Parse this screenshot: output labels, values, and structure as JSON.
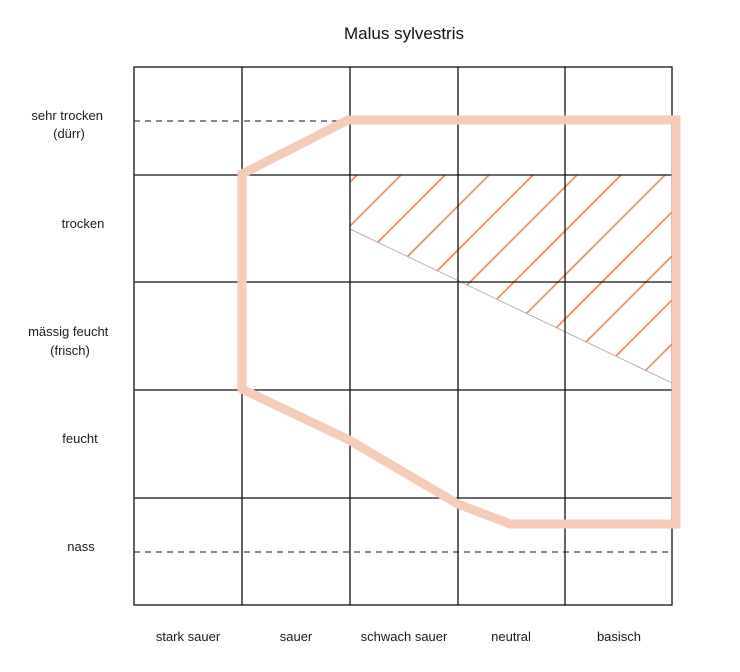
{
  "title": "Malus sylvestris",
  "rows": [
    {
      "id": "sehr-trocken",
      "line1": "sehr trocken",
      "line2": "(dürr)"
    },
    {
      "id": "trocken",
      "line1": "trocken",
      "line2": ""
    },
    {
      "id": "maessig-feucht",
      "line1": "mässig feucht",
      "line2": "(frisch)"
    },
    {
      "id": "feucht",
      "line1": "feucht",
      "line2": ""
    },
    {
      "id": "nass",
      "line1": "nass",
      "line2": ""
    }
  ],
  "columns": [
    {
      "id": "stark-sauer",
      "label": "stark sauer"
    },
    {
      "id": "sauer",
      "label": "sauer"
    },
    {
      "id": "schwach-sauer",
      "label": "schwach sauer"
    },
    {
      "id": "neutral",
      "label": "neutral"
    },
    {
      "id": "basisch",
      "label": "basisch"
    }
  ],
  "colors": {
    "grid": "#111111",
    "range_outline": "#f6cbb7",
    "optimum_hatch": "#f28c5c",
    "boundary": "#9a9a9a"
  }
}
